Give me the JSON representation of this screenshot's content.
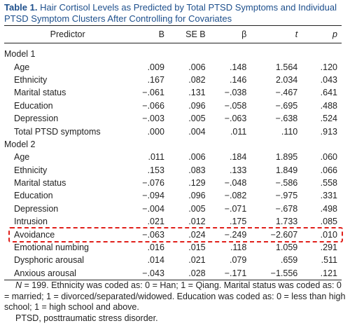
{
  "title": {
    "label": "Table 1.",
    "text": "Hair Cortisol Levels as Predicted by Total PTSD Symptoms and Individual PTSD Symptom Clusters After Controlling for Covariates"
  },
  "table": {
    "headers": [
      "Predictor",
      "B",
      "SE B",
      "β",
      "t",
      "p"
    ],
    "sections": [
      {
        "name": "Model 1",
        "rows": [
          [
            "Age",
            ".009",
            ".006",
            ".148",
            "1.564",
            ".120"
          ],
          [
            "Ethnicity",
            ".167",
            ".082",
            ".146",
            "2.034",
            ".043"
          ],
          [
            "Marital status",
            "−.061",
            ".131",
            "−.038",
            "−.467",
            ".641"
          ],
          [
            "Education",
            "−.066",
            ".096",
            "−.058",
            "−.695",
            ".488"
          ],
          [
            "Depression",
            "−.003",
            ".005",
            "−.063",
            "−.638",
            ".524"
          ],
          [
            "Total PTSD symptoms",
            ".000",
            ".004",
            ".011",
            ".110",
            ".913"
          ]
        ]
      },
      {
        "name": "Model 2",
        "rows": [
          [
            "Age",
            ".011",
            ".006",
            ".184",
            "1.895",
            ".060"
          ],
          [
            "Ethnicity",
            ".153",
            ".083",
            ".133",
            "1.849",
            ".066"
          ],
          [
            "Marital status",
            "−.076",
            ".129",
            "−.048",
            "−.586",
            ".558"
          ],
          [
            "Education",
            "−.094",
            ".096",
            "−.082",
            "−.975",
            ".331"
          ],
          [
            "Depression",
            "−.004",
            ".005",
            "−.071",
            "−.678",
            ".498"
          ],
          [
            "Intrusion",
            ".021",
            ".012",
            ".175",
            "1.733",
            ".085"
          ],
          [
            "Avoidance",
            "−.063",
            ".024",
            "−.249",
            "−2.607",
            ".010"
          ],
          [
            "Emotional numbing",
            ".016",
            ".015",
            ".118",
            "1.059",
            ".291"
          ],
          [
            "Dysphoric arousal",
            ".014",
            ".021",
            ".079",
            ".659",
            ".511"
          ],
          [
            "Anxious arousal",
            "−.043",
            ".028",
            "−.171",
            "−1.556",
            ".121"
          ]
        ]
      }
    ]
  },
  "notes": {
    "variable": "N",
    "text": " = 199. Ethnicity was coded as: 0 = Han; 1 = Qiang. Marital status was coded as: 0 = married; 1 = divorced/separated/widowed. Education was coded as: 0 = less than high school; 1 = high school and above.",
    "abbreviation": "PTSD, posttraumatic stress disorder."
  }
}
